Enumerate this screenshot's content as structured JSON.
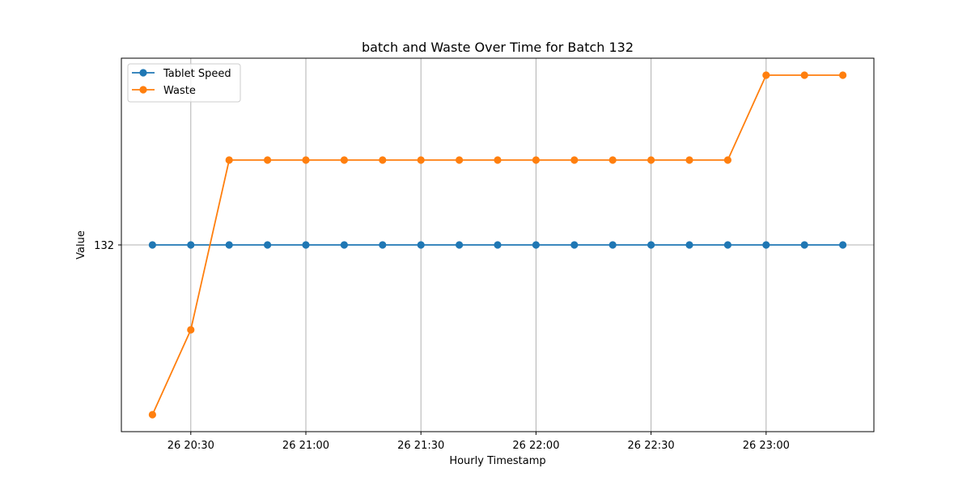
{
  "chart_data": {
    "type": "line",
    "title": "batch and Waste Over Time for Batch 132",
    "xlabel": "Hourly Timestamp",
    "ylabel": "Value",
    "x": [
      "20:20",
      "20:30",
      "20:40",
      "20:50",
      "21:00",
      "21:10",
      "21:20",
      "21:30",
      "21:40",
      "21:50",
      "22:00",
      "22:10",
      "22:20",
      "22:30",
      "22:40",
      "22:50",
      "23:00",
      "23:10",
      "23:20"
    ],
    "x_ticks": [
      "26 20:30",
      "26 21:00",
      "26 21:30",
      "26 22:00",
      "26 22:30",
      "26 23:00"
    ],
    "y_ticks": [
      "132"
    ],
    "grid": true,
    "legend_position": "top-left",
    "series": [
      {
        "name": "Tablet Speed",
        "color": "#1f77b4",
        "values": [
          132,
          132,
          132,
          132,
          132,
          132,
          132,
          132,
          132,
          132,
          132,
          132,
          132,
          132,
          132,
          132,
          132,
          132,
          132
        ]
      },
      {
        "name": "Waste",
        "color": "#ff7f0e",
        "values": [
          130,
          131,
          133,
          133,
          133,
          133,
          133,
          133,
          133,
          133,
          133,
          133,
          133,
          133,
          133,
          133,
          134,
          134,
          134
        ]
      }
    ]
  }
}
